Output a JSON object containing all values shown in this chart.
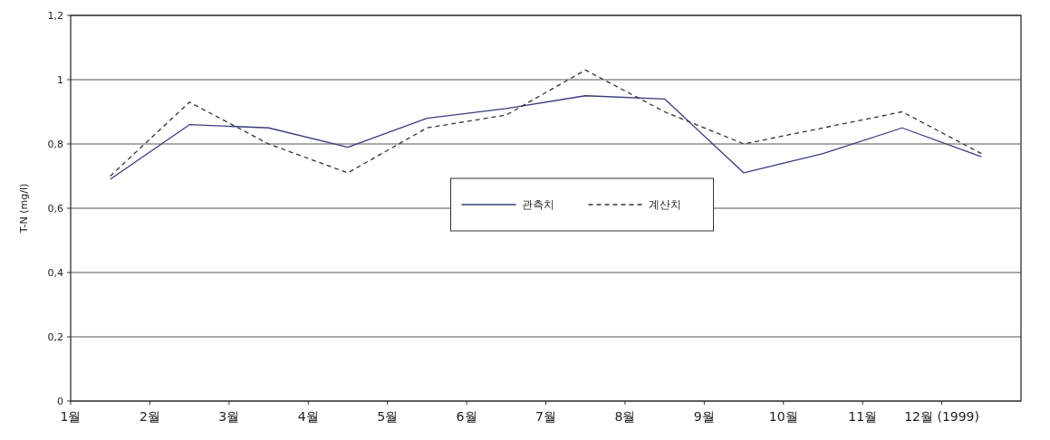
{
  "chart_data": {
    "type": "line",
    "ylabel": "T-N (mg/l)",
    "x": [
      1.5,
      2.5,
      3.5,
      4.5,
      5.5,
      6.5,
      7.5,
      8.5,
      9.5,
      10.5,
      11.5,
      12.5
    ],
    "series": [
      {
        "name": "관측치",
        "color": "#3a3a80",
        "line_style": "solid",
        "values": [
          0.69,
          0.86,
          0.85,
          0.79,
          0.88,
          0.91,
          0.95,
          0.94,
          0.71,
          0.77,
          0.85,
          0.76
        ]
      },
      {
        "name": "계산치",
        "color": "#333333",
        "line_style": "dashed",
        "values": [
          0.7,
          0.93,
          0.8,
          0.71,
          0.85,
          0.89,
          1.03,
          0.9,
          0.8,
          0.85,
          0.9,
          0.77
        ]
      }
    ],
    "xlim": [
      1,
      13
    ],
    "xticks": [
      {
        "value": 1,
        "label": "1월"
      },
      {
        "value": 2,
        "label": "2월"
      },
      {
        "value": 3,
        "label": "3월"
      },
      {
        "value": 4,
        "label": "4월"
      },
      {
        "value": 5,
        "label": "5월"
      },
      {
        "value": 6,
        "label": "6월"
      },
      {
        "value": 7,
        "label": "7월"
      },
      {
        "value": 8,
        "label": "8월"
      },
      {
        "value": 9,
        "label": "9월"
      },
      {
        "value": 10,
        "label": "10월"
      },
      {
        "value": 11,
        "label": "11월"
      },
      {
        "value": 12,
        "label": "12월 (1999)"
      }
    ],
    "ylim": [
      0,
      1.2
    ],
    "yticks": [
      0,
      {
        "value": 0.2,
        "label": "0,2"
      },
      {
        "value": 0.4,
        "label": "0,4"
      },
      {
        "value": 0.6,
        "label": "0,6"
      },
      {
        "value": 0.8,
        "label": "0,8"
      },
      1,
      {
        "value": 1.2,
        "label": "1,2"
      }
    ],
    "grid": "y",
    "legend": "center",
    "marker": "none"
  }
}
